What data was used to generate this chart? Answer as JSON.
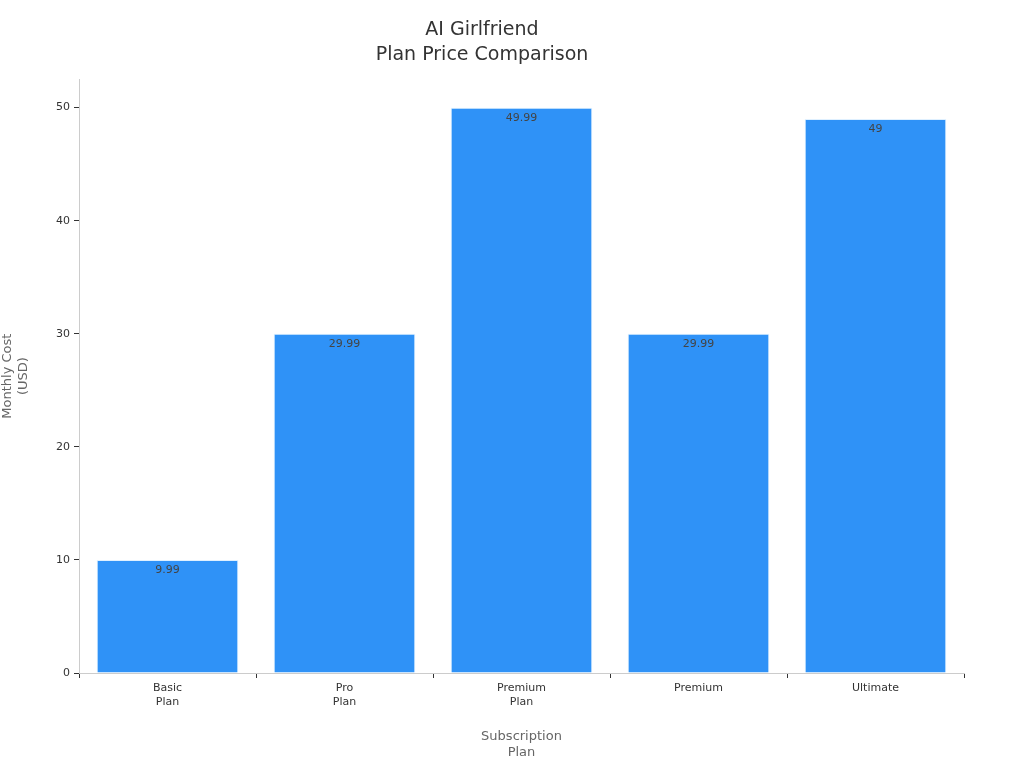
{
  "chart_data": {
    "type": "bar",
    "title": "AI Girlfriend\nPlan Price Comparison",
    "xlabel": "Subscription\nPlan",
    "ylabel": "Monthly Cost\n(USD)",
    "categories": [
      "Basic Plan",
      "Pro Plan",
      "Premium Plan",
      "Premium",
      "Ultimate"
    ],
    "values": [
      9.99,
      29.99,
      49.99,
      29.99,
      49
    ],
    "color": "#2f92f7",
    "ylim": [
      0,
      52.5
    ],
    "yticks": [
      0,
      10,
      20,
      30,
      40,
      50
    ],
    "data_labels": true
  }
}
